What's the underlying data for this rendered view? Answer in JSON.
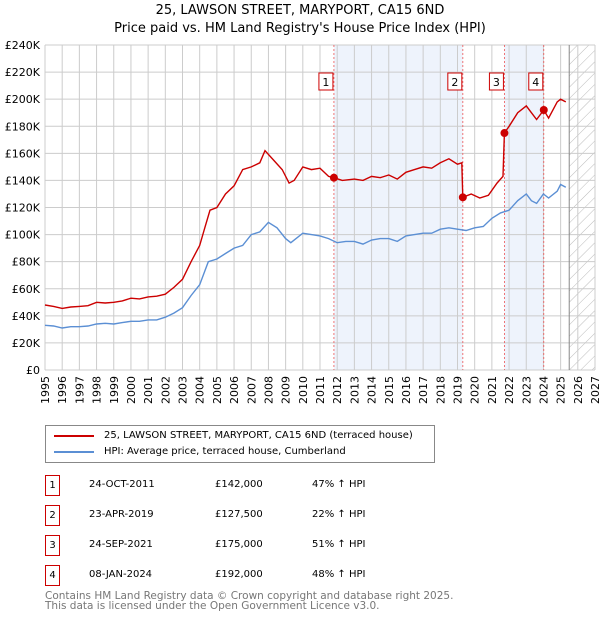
{
  "chart_data": {
    "type": "line",
    "title": "25, LAWSON STREET, MARYPORT, CA15 6ND",
    "subtitle": "Price paid vs. HM Land Registry's House Price Index (HPI)",
    "xlim": [
      1995,
      2027
    ],
    "ylim": [
      0,
      240000
    ],
    "x_ticks": [
      "1995",
      "1996",
      "1997",
      "1998",
      "1999",
      "2000",
      "2001",
      "2002",
      "2003",
      "2004",
      "2005",
      "2006",
      "2007",
      "2008",
      "2009",
      "2010",
      "2011",
      "2012",
      "2013",
      "2014",
      "2015",
      "2016",
      "2017",
      "2018",
      "2019",
      "2020",
      "2021",
      "2022",
      "2023",
      "2024",
      "2025",
      "2026",
      "2027"
    ],
    "y_ticks": [
      {
        "v": 0,
        "label": "£0"
      },
      {
        "v": 20000,
        "label": "£20K"
      },
      {
        "v": 40000,
        "label": "£40K"
      },
      {
        "v": 60000,
        "label": "£60K"
      },
      {
        "v": 80000,
        "label": "£80K"
      },
      {
        "v": 100000,
        "label": "£100K"
      },
      {
        "v": 120000,
        "label": "£120K"
      },
      {
        "v": 140000,
        "label": "£140K"
      },
      {
        "v": 160000,
        "label": "£160K"
      },
      {
        "v": 180000,
        "label": "£180K"
      },
      {
        "v": 200000,
        "label": "£200K"
      },
      {
        "v": 220000,
        "label": "£220K"
      },
      {
        "v": 240000,
        "label": "£240K"
      }
    ],
    "grid": true,
    "forecast_start": 2025.5,
    "shaded_ranges": [
      [
        2011.81,
        2019.31
      ],
      [
        2021.73,
        2024.02
      ]
    ],
    "series": [
      {
        "name": "25, LAWSON STREET, MARYPORT, CA15 6ND (terraced house)",
        "color": "#cc0000",
        "x": [
          1995,
          1995.5,
          1996,
          1996.5,
          1997,
          1997.5,
          1998,
          1998.5,
          1999,
          1999.5,
          2000,
          2000.5,
          2001,
          2001.5,
          2002,
          2002.5,
          2003,
          2003.5,
          2004,
          2004.3,
          2004.6,
          2005,
          2005.5,
          2006,
          2006.5,
          2007,
          2007.5,
          2007.8,
          2008.3,
          2008.8,
          2009.2,
          2009.5,
          2010,
          2010.5,
          2011,
          2011.5,
          2011.81,
          2012.3,
          2013,
          2013.5,
          2014,
          2014.5,
          2015,
          2015.5,
          2016,
          2016.5,
          2017,
          2017.5,
          2018,
          2018.5,
          2019,
          2019.25,
          2019.31,
          2019.8,
          2020.3,
          2020.8,
          2021.3,
          2021.65,
          2021.73,
          2022,
          2022.5,
          2023,
          2023.3,
          2023.6,
          2024.02,
          2024.3,
          2024.8,
          2025,
          2025.3
        ],
        "y": [
          48000,
          47000,
          45500,
          46500,
          47000,
          47500,
          50000,
          49500,
          50000,
          51000,
          53000,
          52500,
          54000,
          54500,
          56000,
          61000,
          67000,
          80000,
          92000,
          105000,
          118000,
          120000,
          130000,
          136000,
          148000,
          150000,
          153000,
          162000,
          155000,
          148000,
          138000,
          140000,
          150000,
          148000,
          149000,
          143000,
          142000,
          140000,
          141000,
          140000,
          143000,
          142000,
          144000,
          141000,
          146000,
          148000,
          150000,
          149000,
          153000,
          156000,
          152000,
          153000,
          127500,
          130000,
          127000,
          129000,
          138000,
          143000,
          175000,
          180000,
          190000,
          195000,
          190000,
          185000,
          192000,
          186000,
          198000,
          200000,
          198000
        ]
      },
      {
        "name": "HPI: Average price, terraced house, Cumberland",
        "color": "#5b8fd4",
        "x": [
          1995,
          1995.5,
          1996,
          1996.5,
          1997,
          1997.5,
          1998,
          1998.5,
          1999,
          1999.5,
          2000,
          2000.5,
          2001,
          2001.5,
          2002,
          2002.5,
          2003,
          2003.5,
          2004,
          2004.5,
          2005,
          2005.5,
          2006,
          2006.5,
          2007,
          2007.5,
          2008,
          2008.5,
          2009,
          2009.3,
          2010,
          2010.5,
          2011,
          2011.5,
          2012,
          2012.5,
          2013,
          2013.5,
          2014,
          2014.5,
          2015,
          2015.5,
          2016,
          2016.5,
          2017,
          2017.5,
          2018,
          2018.5,
          2019,
          2019.5,
          2020,
          2020.5,
          2021,
          2021.5,
          2022,
          2022.5,
          2023,
          2023.3,
          2023.6,
          2024,
          2024.3,
          2024.8,
          2025,
          2025.3
        ],
        "y": [
          33000,
          32500,
          31000,
          32000,
          32000,
          32500,
          34000,
          34500,
          34000,
          35000,
          36000,
          36000,
          37000,
          37000,
          39000,
          42000,
          46000,
          55000,
          63000,
          80000,
          82000,
          86000,
          90000,
          92000,
          100000,
          102000,
          109000,
          105000,
          97000,
          94000,
          101000,
          100000,
          99000,
          97000,
          94000,
          95000,
          95000,
          93000,
          96000,
          97000,
          97000,
          95000,
          99000,
          100000,
          101000,
          101000,
          104000,
          105000,
          104000,
          103000,
          105000,
          106000,
          112000,
          116000,
          118000,
          125000,
          130000,
          125000,
          123000,
          130000,
          127000,
          132000,
          137000,
          135000
        ]
      }
    ],
    "sales": [
      {
        "n": "1",
        "x": 2011.81,
        "y": 142000
      },
      {
        "n": "2",
        "x": 2019.31,
        "y": 127500
      },
      {
        "n": "3",
        "x": 2021.73,
        "y": 175000
      },
      {
        "n": "4",
        "x": 2024.02,
        "y": 192000
      }
    ],
    "legend_position": "below"
  },
  "legend": {
    "property": "25, LAWSON STREET, MARYPORT, CA15 6ND (terraced house)",
    "hpi": "HPI: Average price, terraced house, Cumberland"
  },
  "transactions": [
    {
      "n": "1",
      "date": "24-OCT-2011",
      "price": "£142,000",
      "hpi": "47% ↑ HPI"
    },
    {
      "n": "2",
      "date": "23-APR-2019",
      "price": "£127,500",
      "hpi": "22% ↑ HPI"
    },
    {
      "n": "3",
      "date": "24-SEP-2021",
      "price": "£175,000",
      "hpi": "51% ↑ HPI"
    },
    {
      "n": "4",
      "date": "08-JAN-2024",
      "price": "£192,000",
      "hpi": "48% ↑ HPI"
    }
  ],
  "footer": {
    "line1": "Contains HM Land Registry data © Crown copyright and database right 2025.",
    "line2": "This data is licensed under the Open Government Licence v3.0."
  },
  "colors": {
    "property": "#cc0000",
    "hpi": "#5b8fd4",
    "shade": "#eef3fc"
  }
}
